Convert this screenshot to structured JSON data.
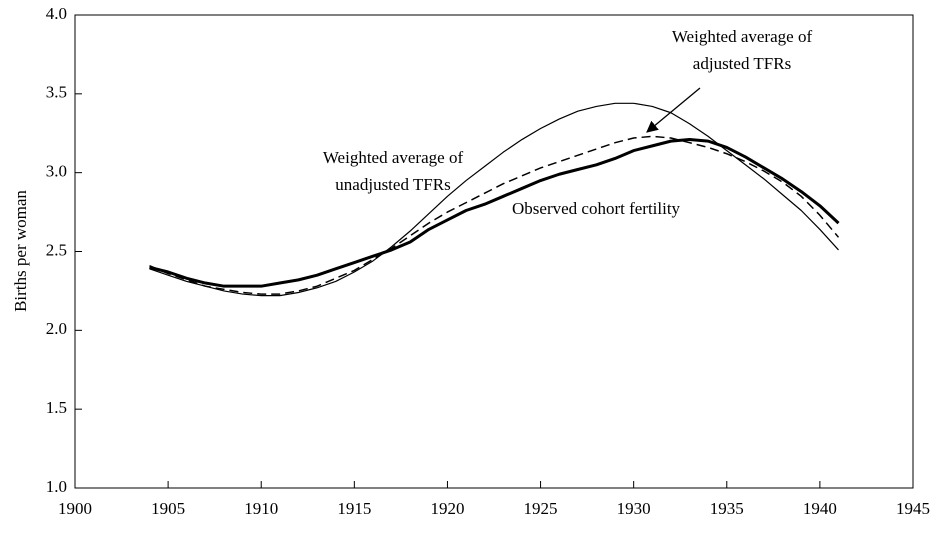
{
  "chart_data": {
    "type": "line",
    "y_label": "Births per woman",
    "x": [
      1904,
      1905,
      1906,
      1907,
      1908,
      1909,
      1910,
      1911,
      1912,
      1913,
      1914,
      1915,
      1916,
      1917,
      1918,
      1919,
      1920,
      1921,
      1922,
      1923,
      1924,
      1925,
      1926,
      1927,
      1928,
      1929,
      1930,
      1931,
      1932,
      1933,
      1934,
      1935,
      1936,
      1937,
      1938,
      1939,
      1940,
      1941
    ],
    "series": [
      {
        "color": "#000000",
        "width": 3,
        "dash": false,
        "values": [
          2.4,
          2.37,
          2.33,
          2.3,
          2.28,
          2.28,
          2.28,
          2.3,
          2.32,
          2.35,
          2.39,
          2.43,
          2.47,
          2.51,
          2.56,
          2.64,
          2.7,
          2.76,
          2.8,
          2.85,
          2.9,
          2.95,
          2.99,
          3.02,
          3.05,
          3.09,
          3.14,
          3.17,
          3.2,
          3.21,
          3.2,
          3.16,
          3.1,
          3.03,
          2.96,
          2.88,
          2.79,
          2.68
        ]
      },
      {
        "color": "#000000",
        "width": 1.2,
        "dash": false,
        "values": [
          2.39,
          2.35,
          2.31,
          2.28,
          2.25,
          2.23,
          2.22,
          2.22,
          2.24,
          2.27,
          2.31,
          2.37,
          2.44,
          2.53,
          2.63,
          2.74,
          2.85,
          2.95,
          3.04,
          3.13,
          3.21,
          3.28,
          3.34,
          3.39,
          3.42,
          3.44,
          3.44,
          3.42,
          3.38,
          3.31,
          3.23,
          3.14,
          3.05,
          2.96,
          2.86,
          2.76,
          2.64,
          2.51
        ]
      },
      {
        "color": "#000000",
        "width": 1.5,
        "dash": true,
        "values": [
          2.41,
          2.36,
          2.32,
          2.28,
          2.26,
          2.24,
          2.23,
          2.23,
          2.25,
          2.28,
          2.33,
          2.38,
          2.45,
          2.52,
          2.6,
          2.68,
          2.75,
          2.81,
          2.87,
          2.93,
          2.98,
          3.03,
          3.07,
          3.11,
          3.15,
          3.19,
          3.22,
          3.23,
          3.22,
          3.19,
          3.16,
          3.12,
          3.07,
          3.01,
          2.94,
          2.85,
          2.73,
          2.59
        ]
      }
    ],
    "annotations": [
      {
        "lines": [
          "Weighted average of",
          "adjusted TFRs"
        ]
      },
      {
        "lines": [
          "Weighted average of",
          "unadjusted TFRs"
        ]
      },
      {
        "lines": [
          "Observed cohort fertility"
        ]
      }
    ],
    "xlim": [
      1900,
      1945
    ],
    "xticks": [
      1900,
      1905,
      1910,
      1915,
      1920,
      1925,
      1930,
      1935,
      1940,
      1945
    ],
    "ylim": [
      1,
      4
    ],
    "yticks": [
      {
        "value": 1,
        "label": "1.0"
      },
      {
        "value": 1.5,
        "label": "1.5"
      },
      {
        "value": 2,
        "label": "2.0"
      },
      {
        "value": 2.5,
        "label": "2.5"
      },
      {
        "value": 3,
        "label": "3.0"
      },
      {
        "value": 3.5,
        "label": "3.5"
      },
      {
        "value": 4,
        "label": "4.0"
      }
    ]
  }
}
